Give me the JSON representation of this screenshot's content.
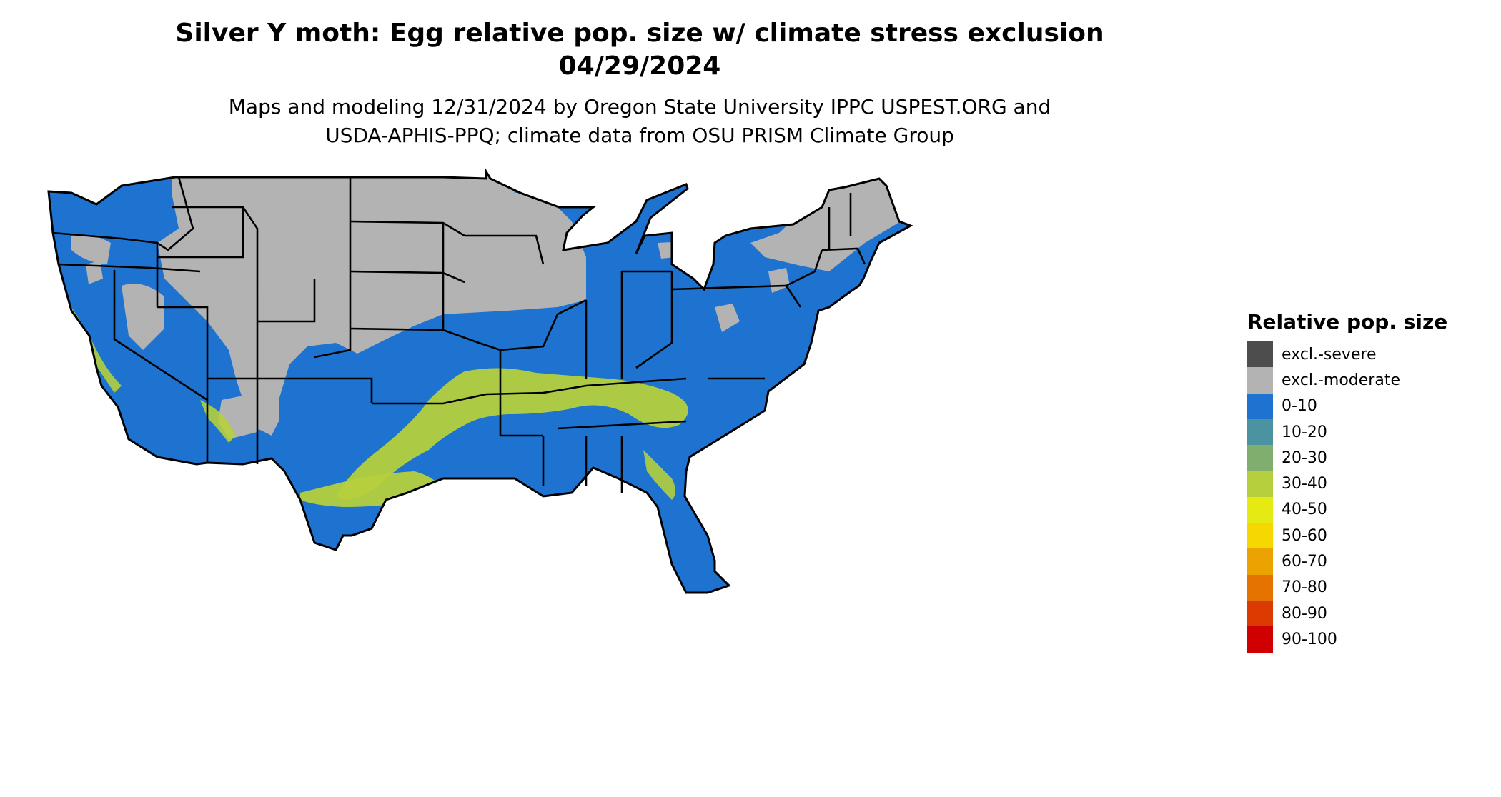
{
  "header": {
    "title_line1": "Silver Y moth: Egg relative pop. size w/ climate stress exclusion",
    "title_line2": "04/29/2024",
    "subtitle_line1": "Maps and modeling 12/31/2024 by Oregon State University IPPC USPEST.ORG and",
    "subtitle_line2": "USDA-APHIS-PPQ; climate data from OSU PRISM Climate Group"
  },
  "legend": {
    "title": "Relative pop. size",
    "items": [
      {
        "label": "excl.-severe",
        "color": "#4d4d4d"
      },
      {
        "label": "excl.-moderate",
        "color": "#b3b3b3"
      },
      {
        "label": "0-10",
        "color": "#1d73cf"
      },
      {
        "label": "10-20",
        "color": "#4b93a0"
      },
      {
        "label": "20-30",
        "color": "#7fae6e"
      },
      {
        "label": "30-40",
        "color": "#b5cf3d"
      },
      {
        "label": "40-50",
        "color": "#e6ea13"
      },
      {
        "label": "50-60",
        "color": "#f6d800"
      },
      {
        "label": "60-70",
        "color": "#eaa300"
      },
      {
        "label": "70-80",
        "color": "#e57300"
      },
      {
        "label": "80-90",
        "color": "#db3a00"
      },
      {
        "label": "90-100",
        "color": "#d00000"
      }
    ]
  },
  "map_colors": {
    "background": "#ffffff",
    "border": "#000000",
    "excluded": "#b3b3b3",
    "low": "#1d73cf",
    "mid": "#b5cf3d"
  }
}
